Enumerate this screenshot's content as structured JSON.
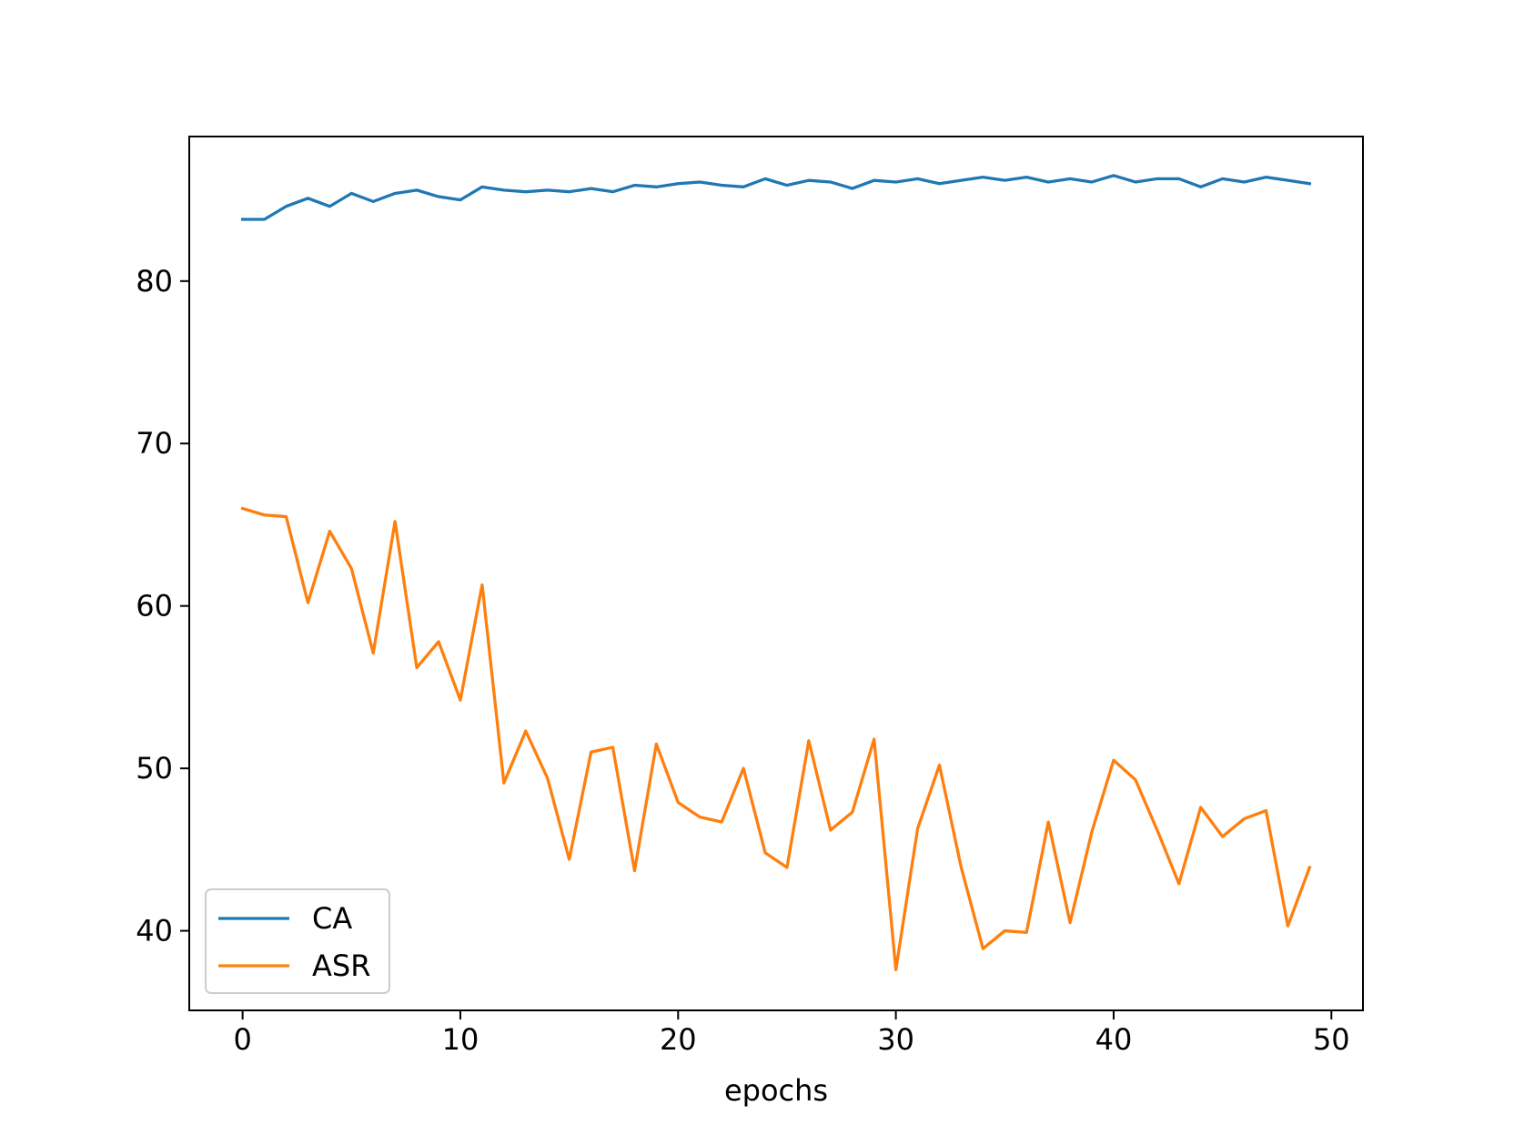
{
  "chart_data": {
    "type": "line",
    "title": "",
    "xlabel": "epochs",
    "ylabel": "",
    "xlim": [
      -2.45,
      51.45
    ],
    "ylim": [
      35.1,
      88.9
    ],
    "xticks": [
      0,
      10,
      20,
      30,
      40,
      50
    ],
    "yticks": [
      40,
      50,
      60,
      70,
      80
    ],
    "grid": false,
    "legend_position": "lower-left",
    "x": [
      0,
      1,
      2,
      3,
      4,
      5,
      6,
      7,
      8,
      9,
      10,
      11,
      12,
      13,
      14,
      15,
      16,
      17,
      18,
      19,
      20,
      21,
      22,
      23,
      24,
      25,
      26,
      27,
      28,
      29,
      30,
      31,
      32,
      33,
      34,
      35,
      36,
      37,
      38,
      39,
      40,
      41,
      42,
      43,
      44,
      45,
      46,
      47,
      48,
      49
    ],
    "series": [
      {
        "name": "CA",
        "color": "#1f77b4",
        "values": [
          83.8,
          83.8,
          84.6,
          85.1,
          84.6,
          85.4,
          84.9,
          85.4,
          85.6,
          85.2,
          85.0,
          85.8,
          85.6,
          85.5,
          85.6,
          85.5,
          85.7,
          85.5,
          85.9,
          85.8,
          86.0,
          86.1,
          85.9,
          85.8,
          86.3,
          85.9,
          86.2,
          86.1,
          85.7,
          86.2,
          86.1,
          86.3,
          86.0,
          86.2,
          86.4,
          86.2,
          86.4,
          86.1,
          86.3,
          86.1,
          86.5,
          86.1,
          86.3,
          86.3,
          85.8,
          86.3,
          86.1,
          86.4,
          86.2,
          86.0
        ]
      },
      {
        "name": "ASR",
        "color": "#ff7f0e",
        "values": [
          66.0,
          65.6,
          65.5,
          60.2,
          64.6,
          62.3,
          57.1,
          65.2,
          56.2,
          57.8,
          54.2,
          61.3,
          49.1,
          52.3,
          49.4,
          44.4,
          51.0,
          51.3,
          43.7,
          51.5,
          47.9,
          47.0,
          46.7,
          50.0,
          44.8,
          43.9,
          51.7,
          46.2,
          47.3,
          51.8,
          37.6,
          46.3,
          50.2,
          43.9,
          38.9,
          40.0,
          39.9,
          46.7,
          40.5,
          46.1,
          50.5,
          49.3,
          46.2,
          42.9,
          47.6,
          45.8,
          46.9,
          47.4,
          40.3,
          43.9
        ]
      }
    ]
  }
}
